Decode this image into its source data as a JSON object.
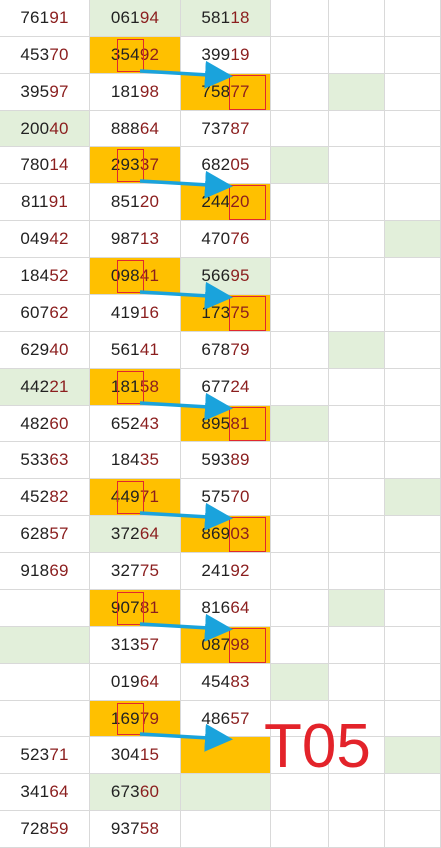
{
  "colors": {
    "orange": "#ffc000",
    "green": "#e2efda",
    "box": "#e0282e",
    "arrow": "#1aa3dc",
    "label": "#e3232a"
  },
  "label": "T05",
  "rows": [
    [
      {
        "v": "76191"
      },
      {
        "v": "06194",
        "bg": "g"
      },
      {
        "v": "58118",
        "bg": "g"
      },
      {},
      {},
      {}
    ],
    [
      {
        "v": "45370"
      },
      {
        "v": "35492",
        "bg": "o",
        "box": true,
        "arrow": true
      },
      {
        "v": "39919"
      },
      {},
      {},
      {}
    ],
    [
      {
        "v": "39597"
      },
      {
        "v": "18198"
      },
      {
        "v": "75877",
        "bg": "o",
        "box": true
      },
      {},
      {
        "bg": "g"
      },
      {}
    ],
    [
      {
        "v": "20040",
        "bg": "g"
      },
      {
        "v": "88864"
      },
      {
        "v": "73787"
      },
      {},
      {},
      {}
    ],
    [
      {
        "v": "78014"
      },
      {
        "v": "29337",
        "bg": "o",
        "box": true,
        "arrow": true
      },
      {
        "v": "68205"
      },
      {
        "bg": "g"
      },
      {},
      {}
    ],
    [
      {
        "v": "81191"
      },
      {
        "v": "85120"
      },
      {
        "v": "24420",
        "bg": "o",
        "box": true
      },
      {},
      {},
      {}
    ],
    [
      {
        "v": "04942"
      },
      {
        "v": "98713"
      },
      {
        "v": "47076"
      },
      {},
      {},
      {
        "bg": "g"
      }
    ],
    [
      {
        "v": "18452"
      },
      {
        "v": "09841",
        "bg": "o",
        "box": true,
        "arrow": true
      },
      {
        "v": "56695",
        "bg": "g"
      },
      {},
      {},
      {}
    ],
    [
      {
        "v": "60762"
      },
      {
        "v": "41916"
      },
      {
        "v": "17375",
        "bg": "o",
        "box": true
      },
      {},
      {},
      {}
    ],
    [
      {
        "v": "62940"
      },
      {
        "v": "56141"
      },
      {
        "v": "67879"
      },
      {},
      {
        "bg": "g"
      },
      {}
    ],
    [
      {
        "v": "44221",
        "bg": "g"
      },
      {
        "v": "18158",
        "bg": "o",
        "box": true,
        "arrow": true
      },
      {
        "v": "67724"
      },
      {},
      {},
      {}
    ],
    [
      {
        "v": "48260"
      },
      {
        "v": "65243"
      },
      {
        "v": "89581",
        "bg": "o",
        "box": true
      },
      {
        "bg": "g"
      },
      {},
      {}
    ],
    [
      {
        "v": "53363"
      },
      {
        "v": "18435"
      },
      {
        "v": "59389"
      },
      {},
      {},
      {}
    ],
    [
      {
        "v": "45282"
      },
      {
        "v": "44971",
        "bg": "o",
        "box": true,
        "arrow": true
      },
      {
        "v": "57570"
      },
      {},
      {},
      {
        "bg": "g"
      }
    ],
    [
      {
        "v": "62857"
      },
      {
        "v": "37264",
        "bg": "g"
      },
      {
        "v": "86903",
        "bg": "o",
        "box": true
      },
      {},
      {},
      {}
    ],
    [
      {
        "v": "91869"
      },
      {
        "v": "32775"
      },
      {
        "v": "24192"
      },
      {},
      {},
      {}
    ],
    [
      {},
      {
        "v": "90781",
        "bg": "o",
        "box": true,
        "arrow": true
      },
      {
        "v": "81664"
      },
      {},
      {
        "bg": "g"
      },
      {}
    ],
    [
      {
        "bg": "g"
      },
      {
        "v": "31357"
      },
      {
        "v": "08798",
        "bg": "o",
        "box": true
      },
      {},
      {},
      {}
    ],
    [
      {},
      {
        "v": "01964"
      },
      {
        "v": "45483"
      },
      {
        "bg": "g"
      },
      {},
      {}
    ],
    [
      {},
      {
        "v": "16979",
        "bg": "o",
        "box": true,
        "arrow": true
      },
      {
        "v": "48657"
      },
      {},
      {},
      {}
    ],
    [
      {
        "v": "52371"
      },
      {
        "v": "30415"
      },
      {
        "bg": "o",
        "tgt": true
      },
      {},
      {},
      {
        "bg": "g"
      }
    ],
    [
      {
        "v": "34164"
      },
      {
        "v": "67360",
        "bg": "g"
      },
      {
        "bg": "g"
      },
      {},
      {},
      {}
    ],
    [
      {
        "v": "72859"
      },
      {
        "v": "93758"
      },
      {},
      {},
      {},
      {}
    ]
  ]
}
